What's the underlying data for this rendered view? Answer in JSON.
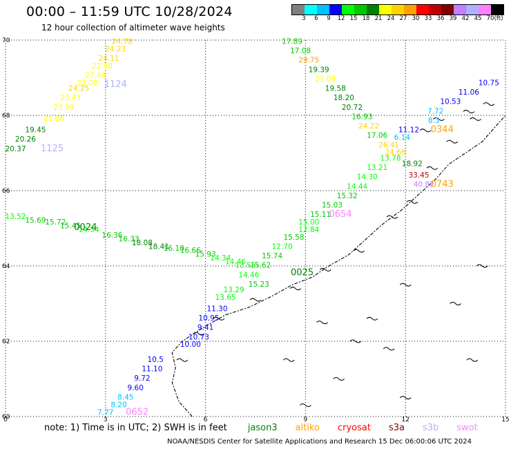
{
  "header": {
    "title": "00:00 – 11:59 UTC 10/28/2024",
    "subtitle": "12 hour collection of altimeter wave heights"
  },
  "colorbar": {
    "unit": "(ft)",
    "bins": [
      {
        "label": "3",
        "color": "#808080"
      },
      {
        "label": "6",
        "color": "#00ffff"
      },
      {
        "label": "9",
        "color": "#00c0ff"
      },
      {
        "label": "12",
        "color": "#0000ff"
      },
      {
        "label": "15",
        "color": "#00ff00"
      },
      {
        "label": "18",
        "color": "#00c800"
      },
      {
        "label": "21",
        "color": "#008000"
      },
      {
        "label": "24",
        "color": "#ffff00"
      },
      {
        "label": "27",
        "color": "#ffd200"
      },
      {
        "label": "30",
        "color": "#ffa000"
      },
      {
        "label": "33",
        "color": "#ff0000"
      },
      {
        "label": "36",
        "color": "#c00000"
      },
      {
        "label": "39",
        "color": "#800000"
      },
      {
        "label": "42",
        "color": "#c080ff"
      },
      {
        "label": "45",
        "color": "#b0b0ff"
      },
      {
        "label": "70",
        "color": "#ff80ff"
      },
      {
        "label": "",
        "color": "#000000"
      }
    ]
  },
  "map": {
    "x_ticks": [
      "0",
      "3",
      "6",
      "9",
      "12",
      "15"
    ],
    "y_ticks": [
      "70",
      "68",
      "66",
      "64",
      "62",
      "60"
    ],
    "lon_range": [
      0,
      15
    ],
    "lat_range": [
      60,
      70
    ],
    "grid": true
  },
  "tracks": [
    {
      "time": "1124",
      "time_color": "#b0b0ff",
      "time_pos": [
        3.3,
        68.75
      ],
      "points": [
        {
          "value": "24.78",
          "lon": 3.5,
          "lat": 69.9
        },
        {
          "value": "24.23",
          "lon": 3.3,
          "lat": 69.7
        },
        {
          "value": "24.11",
          "lon": 3.1,
          "lat": 69.45
        },
        {
          "value": "22.80",
          "lon": 2.9,
          "lat": 69.25
        },
        {
          "value": "23.48",
          "lon": 2.7,
          "lat": 69.0
        },
        {
          "value": "22.00",
          "lon": 2.45,
          "lat": 68.8
        },
        {
          "value": "24.25",
          "lon": 2.2,
          "lat": 68.65
        },
        {
          "value": "23.45",
          "lon": 1.95,
          "lat": 68.4
        },
        {
          "value": "23.99",
          "lon": 1.75,
          "lat": 68.15
        },
        {
          "value": "21.06",
          "lon": 1.45,
          "lat": 67.85
        },
        {
          "value": "19.45",
          "lon": 0.9,
          "lat": 67.55
        },
        {
          "value": "20.26",
          "lon": 0.6,
          "lat": 67.3
        },
        {
          "value": "20.37",
          "lon": 0.3,
          "lat": 67.05
        }
      ],
      "extra_time": {
        "label": "1125",
        "color": "#b0b0ff",
        "pos": [
          1.4,
          67.05
        ]
      }
    },
    {
      "time": "0344",
      "time_color": "#ffa000",
      "time_pos": [
        13.1,
        67.55
      ],
      "points": [
        {
          "value": "17.89",
          "lon": 8.6,
          "lat": 69.9
        },
        {
          "value": "17.08",
          "lon": 8.85,
          "lat": 69.65
        },
        {
          "value": "29.75",
          "lon": 9.1,
          "lat": 69.4
        },
        {
          "value": "19.39",
          "lon": 9.4,
          "lat": 69.15
        },
        {
          "value": "21.05",
          "lon": 9.6,
          "lat": 68.9
        },
        {
          "value": "19.58",
          "lon": 9.9,
          "lat": 68.65
        },
        {
          "value": "18.20",
          "lon": 10.15,
          "lat": 68.4
        },
        {
          "value": "20.72",
          "lon": 10.4,
          "lat": 68.15
        },
        {
          "value": "16.93",
          "lon": 10.7,
          "lat": 67.9
        },
        {
          "value": "24.22",
          "lon": 10.9,
          "lat": 67.65
        },
        {
          "value": "17.06",
          "lon": 11.15,
          "lat": 67.4
        },
        {
          "value": "26.41",
          "lon": 11.5,
          "lat": 67.15
        },
        {
          "value": "24.66",
          "lon": 11.7,
          "lat": 66.95
        },
        {
          "value": "13.78",
          "lon": 11.55,
          "lat": 66.8
        },
        {
          "value": "18.92",
          "lon": 12.2,
          "lat": 66.65
        },
        {
          "value": "13.21",
          "lon": 11.15,
          "lat": 66.55
        },
        {
          "value": "33.45",
          "lon": 12.4,
          "lat": 66.35
        },
        {
          "value": "14.30",
          "lon": 10.85,
          "lat": 66.3
        },
        {
          "value": "40.82",
          "lon": 12.55,
          "lat": 66.1
        },
        {
          "value": "14.44",
          "lon": 10.55,
          "lat": 66.05
        },
        {
          "value": "15.32",
          "lon": 10.25,
          "lat": 65.8
        },
        {
          "value": "15.03",
          "lon": 9.8,
          "lat": 65.55
        },
        {
          "value": "15.11",
          "lon": 9.45,
          "lat": 65.3
        },
        {
          "value": "15.00",
          "lon": 9.1,
          "lat": 65.1
        },
        {
          "value": "12.84",
          "lon": 9.1,
          "lat": 64.9
        },
        {
          "value": "15.58",
          "lon": 8.65,
          "lat": 64.7
        },
        {
          "value": "12.70",
          "lon": 8.3,
          "lat": 64.45
        },
        {
          "value": "15.74",
          "lon": 8.0,
          "lat": 64.2
        },
        {
          "value": "15.62",
          "lon": 7.65,
          "lat": 63.95
        },
        {
          "value": "14.46",
          "lon": 7.3,
          "lat": 63.7
        },
        {
          "value": "15.23",
          "lon": 7.6,
          "lat": 63.45
        },
        {
          "value": "13.29",
          "lon": 6.85,
          "lat": 63.3
        },
        {
          "value": "13.65",
          "lon": 6.6,
          "lat": 63.1
        },
        {
          "value": "11.30",
          "lon": 6.35,
          "lat": 62.8
        },
        {
          "value": "10.95",
          "lon": 6.1,
          "lat": 62.55
        },
        {
          "value": "9.41",
          "lon": 6.0,
          "lat": 62.3
        },
        {
          "value": "10.73",
          "lon": 5.8,
          "lat": 62.05
        },
        {
          "value": "10.00",
          "lon": 5.55,
          "lat": 61.85
        },
        {
          "value": "10.5",
          "lon": 4.5,
          "lat": 61.45
        },
        {
          "value": "11.10",
          "lon": 4.4,
          "lat": 61.2
        },
        {
          "value": "9.72",
          "lon": 4.1,
          "lat": 60.95
        },
        {
          "value": "9.60",
          "lon": 3.9,
          "lat": 60.7
        },
        {
          "value": "8.45",
          "lon": 3.6,
          "lat": 60.45
        },
        {
          "value": "8.20",
          "lon": 3.4,
          "lat": 60.25
        },
        {
          "value": "7.77",
          "lon": 3.0,
          "lat": 60.05
        }
      ]
    },
    {
      "time": "0024",
      "time_color": "#008000",
      "time_pos": [
        2.4,
        64.95
      ],
      "points": [
        {
          "value": "13.52",
          "lon": 0.3,
          "lat": 65.25
        },
        {
          "value": "15.69",
          "lon": 0.9,
          "lat": 65.15
        },
        {
          "value": "15.72",
          "lon": 1.5,
          "lat": 65.1
        },
        {
          "value": "15.45",
          "lon": 1.95,
          "lat": 65.0
        },
        {
          "value": "14.54",
          "lon": 2.5,
          "lat": 64.9
        },
        {
          "value": "16.36",
          "lon": 3.2,
          "lat": 64.75
        },
        {
          "value": "16.33",
          "lon": 3.7,
          "lat": 64.65
        },
        {
          "value": "18.08",
          "lon": 4.1,
          "lat": 64.55
        },
        {
          "value": "18.41",
          "lon": 4.6,
          "lat": 64.45
        },
        {
          "value": "16.10",
          "lon": 5.05,
          "lat": 64.4
        },
        {
          "value": "16.66",
          "lon": 5.55,
          "lat": 64.35
        },
        {
          "value": "15.93",
          "lon": 6.0,
          "lat": 64.25
        },
        {
          "value": "14.34",
          "lon": 6.45,
          "lat": 64.15
        },
        {
          "value": "14.46",
          "lon": 6.9,
          "lat": 64.05
        },
        {
          "value": "13.55",
          "lon": 7.2,
          "lat": 63.95
        }
      ],
      "extra_time": {
        "label": "0025",
        "color": "#008000",
        "pos": [
          8.9,
          63.75
        ]
      }
    },
    {
      "time": "0654",
      "time_color": "#ff80ff",
      "time_pos": [
        10.05,
        65.3
      ],
      "points": []
    },
    {
      "time": "0652",
      "time_color": "#ff80ff",
      "time_pos": [
        3.95,
        60.05
      ],
      "points": []
    },
    {
      "time": "0743",
      "time_color": "#ffa000",
      "time_pos": [
        13.1,
        66.1
      ],
      "points": []
    },
    {
      "time": "",
      "time_color": "#0000ff",
      "points": [
        {
          "value": "10.75",
          "lon": 14.5,
          "lat": 68.8
        },
        {
          "value": "11.06",
          "lon": 13.9,
          "lat": 68.55
        },
        {
          "value": "10.53",
          "lon": 13.35,
          "lat": 68.3
        },
        {
          "value": "7.72",
          "lon": 12.9,
          "lat": 68.05
        },
        {
          "value": "11.12",
          "lon": 12.1,
          "lat": 67.55
        },
        {
          "value": "6.14",
          "lon": 11.9,
          "lat": 67.35
        },
        {
          "value": "8.3",
          "lon": 12.85,
          "lat": 67.8
        }
      ]
    }
  ],
  "footer": {
    "note_prefix": "note:  1) Time is in UTC;  2) SWH is in feet",
    "missions": [
      {
        "name": "jason3",
        "color": "#008000"
      },
      {
        "name": "altiko",
        "color": "#ffa000"
      },
      {
        "name": "cryosat",
        "color": "#ff0000"
      },
      {
        "name": "s3a",
        "color": "#800000"
      },
      {
        "name": "s3b",
        "color": "#b0b0ff"
      },
      {
        "name": "swot",
        "color": "#ff80ff"
      }
    ],
    "credit": "NOAA/NESDIS Center for Satellite Applications and Research    15 Dec 06:00:06 UTC 2024"
  }
}
